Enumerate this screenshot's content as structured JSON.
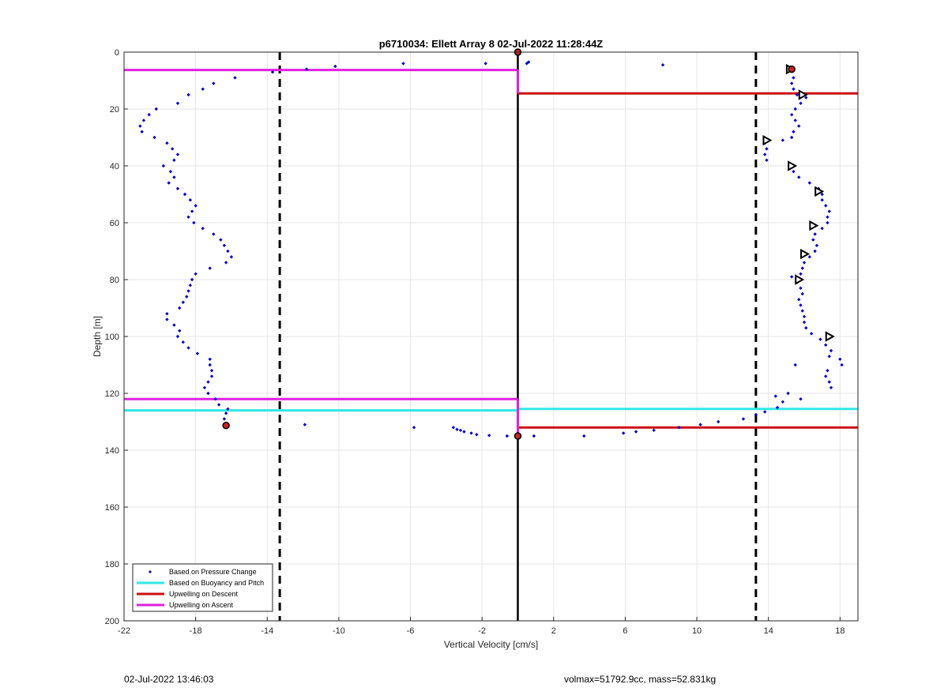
{
  "chart_data": {
    "type": "scatter",
    "title": "p6710034: Ellett Array 8 02-Jul-2022 11:28:44Z",
    "xlabel": "Vertical Velocity [cm/s]",
    "ylabel": "Depth [m]",
    "xlim": [
      -22,
      19
    ],
    "ylim": [
      0,
      200
    ],
    "y_reversed": true,
    "grid": true,
    "x_ticks": [
      -22,
      -18,
      -14,
      -10,
      -6,
      -2,
      2,
      6,
      10,
      14,
      18
    ],
    "y_ticks": [
      0,
      20,
      40,
      60,
      80,
      100,
      120,
      140,
      160,
      180,
      200
    ],
    "legend": {
      "placement": "bottom-left",
      "entries": [
        {
          "label": "Based on Pressure Change",
          "color": "#0000cc",
          "style": "dot"
        },
        {
          "label": "Based on Buoyancy and Pitch",
          "color": "#33e6e6",
          "style": "line"
        },
        {
          "label": "Upwelling on Descent",
          "color": "#cc1111",
          "style": "line"
        },
        {
          "label": "Upwelling on Ascent",
          "color": "#e020e0",
          "style": "line"
        }
      ]
    },
    "series": [
      {
        "name": "Based on Pressure Change",
        "color": "#0000cc",
        "points": [
          [
            -15.8,
            9
          ],
          [
            -17.0,
            11
          ],
          [
            -17.6,
            13
          ],
          [
            -18.4,
            15
          ],
          [
            -19.0,
            18
          ],
          [
            -20.2,
            20
          ],
          [
            -20.6,
            22
          ],
          [
            -20.9,
            24
          ],
          [
            -21.1,
            26
          ],
          [
            -21.0,
            28
          ],
          [
            -20.3,
            30
          ],
          [
            -19.6,
            32
          ],
          [
            -19.3,
            34
          ],
          [
            -19.0,
            36
          ],
          [
            -19.2,
            38
          ],
          [
            -19.8,
            40
          ],
          [
            -19.4,
            42
          ],
          [
            -19.2,
            44
          ],
          [
            -19.5,
            46
          ],
          [
            -19.0,
            48
          ],
          [
            -18.6,
            50
          ],
          [
            -18.3,
            52
          ],
          [
            -18.0,
            54
          ],
          [
            -18.2,
            56
          ],
          [
            -18.4,
            58
          ],
          [
            -18.1,
            60
          ],
          [
            -17.6,
            62
          ],
          [
            -17.0,
            64
          ],
          [
            -16.6,
            66
          ],
          [
            -16.4,
            68
          ],
          [
            -16.2,
            70
          ],
          [
            -16.0,
            72
          ],
          [
            -16.3,
            74
          ],
          [
            -17.2,
            76
          ],
          [
            -18.0,
            78
          ],
          [
            -18.2,
            80
          ],
          [
            -18.3,
            82
          ],
          [
            -18.4,
            84
          ],
          [
            -18.5,
            86
          ],
          [
            -18.7,
            88
          ],
          [
            -18.9,
            90
          ],
          [
            -19.6,
            92
          ],
          [
            -19.6,
            94
          ],
          [
            -19.2,
            96
          ],
          [
            -18.9,
            98
          ],
          [
            -19.0,
            100
          ],
          [
            -18.7,
            102
          ],
          [
            -18.4,
            104
          ],
          [
            -17.9,
            106
          ],
          [
            -17.2,
            108
          ],
          [
            -17.2,
            110
          ],
          [
            -17.1,
            112
          ],
          [
            -17.1,
            114
          ],
          [
            -17.3,
            116
          ],
          [
            -17.5,
            118
          ],
          [
            -17.3,
            120
          ],
          [
            -16.9,
            122
          ],
          [
            -16.7,
            124
          ],
          [
            -16.2,
            125.5
          ],
          [
            -16.3,
            127
          ],
          [
            -16.4,
            129
          ],
          [
            -16.3,
            131
          ],
          [
            -13.7,
            7
          ],
          [
            -11.8,
            6
          ],
          [
            -10.2,
            5
          ],
          [
            -6.4,
            4
          ],
          [
            -1.8,
            4
          ],
          [
            0.5,
            4
          ],
          [
            0.6,
            3.5
          ],
          [
            8.1,
            4.5
          ],
          [
            -11.9,
            131
          ],
          [
            -5.8,
            132
          ],
          [
            -3.6,
            132
          ],
          [
            -3.4,
            132.7
          ],
          [
            -3.2,
            133
          ],
          [
            -3.0,
            133.5
          ],
          [
            -2.6,
            134
          ],
          [
            -2.3,
            134.5
          ],
          [
            -1.6,
            134.8
          ],
          [
            -0.6,
            135
          ],
          [
            0.9,
            135
          ],
          [
            3.7,
            135
          ],
          [
            5.9,
            134
          ],
          [
            6.6,
            133.5
          ],
          [
            7.6,
            133
          ],
          [
            9.0,
            132
          ],
          [
            10.2,
            131
          ],
          [
            11.2,
            130
          ],
          [
            12.6,
            129
          ],
          [
            13.3,
            127.5
          ],
          [
            13.8,
            126.5
          ],
          [
            14.5,
            125
          ],
          [
            14.8,
            123
          ],
          [
            15.8,
            122
          ],
          [
            14.4,
            121
          ],
          [
            15.1,
            120
          ],
          [
            15.4,
            6
          ],
          [
            15.4,
            9
          ],
          [
            15.3,
            11
          ],
          [
            15.4,
            13
          ],
          [
            15.6,
            15
          ],
          [
            16.1,
            16
          ],
          [
            15.8,
            18
          ],
          [
            15.5,
            20
          ],
          [
            15.3,
            22
          ],
          [
            15.5,
            24
          ],
          [
            15.7,
            26
          ],
          [
            15.4,
            28
          ],
          [
            15.3,
            30
          ],
          [
            14.8,
            31
          ],
          [
            13.8,
            32
          ],
          [
            13.9,
            34
          ],
          [
            13.8,
            36
          ],
          [
            13.9,
            38
          ],
          [
            15.2,
            40
          ],
          [
            15.4,
            42
          ],
          [
            15.7,
            44
          ],
          [
            16.3,
            46
          ],
          [
            16.8,
            48
          ],
          [
            17.0,
            50
          ],
          [
            17.0,
            52
          ],
          [
            17.2,
            54
          ],
          [
            17.4,
            56
          ],
          [
            17.3,
            58
          ],
          [
            17.3,
            60
          ],
          [
            17.0,
            62
          ],
          [
            16.6,
            64
          ],
          [
            16.5,
            66
          ],
          [
            16.7,
            68
          ],
          [
            16.6,
            70
          ],
          [
            16.3,
            72
          ],
          [
            16.0,
            74
          ],
          [
            15.9,
            76
          ],
          [
            15.8,
            78
          ],
          [
            15.3,
            79
          ],
          [
            15.6,
            81
          ],
          [
            15.8,
            83
          ],
          [
            15.9,
            85
          ],
          [
            15.7,
            87
          ],
          [
            15.8,
            89
          ],
          [
            15.9,
            91
          ],
          [
            16.0,
            93
          ],
          [
            16.0,
            95
          ],
          [
            16.1,
            97
          ],
          [
            16.4,
            99
          ],
          [
            16.9,
            101
          ],
          [
            17.2,
            103
          ],
          [
            17.5,
            105
          ],
          [
            17.4,
            107
          ],
          [
            18.0,
            108
          ],
          [
            18.1,
            110
          ],
          [
            17.3,
            112
          ],
          [
            17.2,
            114
          ],
          [
            17.4,
            116
          ],
          [
            17.5,
            118
          ],
          [
            15.5,
            110
          ]
        ]
      },
      {
        "name": "Based on Buoyancy and Pitch",
        "color": "#33e6e6",
        "segments": [
          [
            [
              -22,
              126
            ],
            [
              0,
              126
            ]
          ],
          [
            [
              0,
              125.5
            ],
            [
              19,
              125.5
            ]
          ]
        ]
      },
      {
        "name": "Upwelling on Descent",
        "color": "#cc1111",
        "segments": [
          [
            [
              0,
              14.5
            ],
            [
              19,
              14.5
            ]
          ],
          [
            [
              0,
              132
            ],
            [
              19,
              132
            ]
          ]
        ]
      },
      {
        "name": "Upwelling on Ascent",
        "color": "#e020e0",
        "segments": [
          [
            [
              -22,
              6.3
            ],
            [
              0,
              6.3
            ]
          ],
          [
            [
              -22,
              122
            ],
            [
              0,
              122
            ]
          ],
          [
            [
              0,
              6.3
            ],
            [
              0,
              14.5
            ]
          ],
          [
            [
              0,
              122
            ],
            [
              0,
              135
            ]
          ]
        ]
      }
    ],
    "reference_lines": {
      "dashed_vertical_x": [
        -13.3,
        13.3
      ],
      "solid_vertical_x": [
        0
      ],
      "color": "#000000"
    },
    "triangle_markers": [
      [
        15.2,
        6
      ],
      [
        15.9,
        15
      ],
      [
        13.9,
        31
      ],
      [
        15.3,
        40
      ],
      [
        16.8,
        49
      ],
      [
        16.5,
        61
      ],
      [
        16.0,
        71
      ],
      [
        15.7,
        80
      ],
      [
        17.4,
        100
      ]
    ],
    "endpoint_markers": [
      [
        0,
        0
      ],
      [
        0,
        135
      ],
      [
        -16.3,
        131.3
      ],
      [
        15.3,
        6
      ]
    ]
  },
  "footer": {
    "left": "02-Jul-2022 13:46:03",
    "right": "volmax=51792.9cc, mass=52.831kg"
  }
}
